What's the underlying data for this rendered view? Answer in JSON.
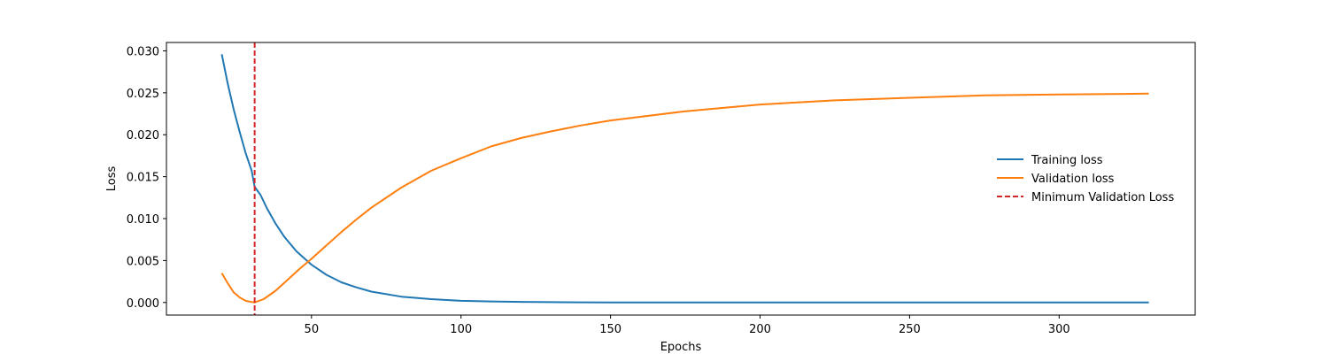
{
  "chart_data": {
    "type": "line",
    "xlabel": "Epochs",
    "ylabel": "Loss",
    "xlim": [
      1.5,
      345.5
    ],
    "ylim": [
      -0.0015,
      0.031
    ],
    "x_ticks": [
      50,
      100,
      150,
      200,
      250,
      300
    ],
    "x_tick_labels": [
      "50",
      "100",
      "150",
      "200",
      "250",
      "300"
    ],
    "y_ticks": [
      0.0,
      0.005,
      0.01,
      0.015,
      0.02,
      0.025,
      0.03
    ],
    "y_tick_labels": [
      "0.000",
      "0.005",
      "0.010",
      "0.015",
      "0.020",
      "0.025",
      "0.030"
    ],
    "grid": false,
    "legend_position": "center-right",
    "series": [
      {
        "name": "Training loss",
        "color": "#1f77b4",
        "style": "solid",
        "x": [
          20,
          22,
          24,
          26,
          28,
          30,
          31,
          33,
          35,
          38,
          41,
          45,
          50,
          55,
          60,
          65,
          70,
          80,
          90,
          100,
          110,
          120,
          130,
          140,
          150,
          175,
          200,
          250,
          300,
          330
        ],
        "y": [
          0.0296,
          0.0261,
          0.023,
          0.0203,
          0.0178,
          0.0157,
          0.0138,
          0.0128,
          0.0113,
          0.0094,
          0.0078,
          0.0061,
          0.0045,
          0.0033,
          0.0024,
          0.0018,
          0.0013,
          0.0007,
          0.0004,
          0.0002,
          0.00012,
          7e-05,
          4e-05,
          2e-05,
          1e-05,
          0.0,
          0.0,
          0.0,
          0.0,
          0.0
        ]
      },
      {
        "name": "Validation loss",
        "color": "#ff7f0e",
        "style": "solid",
        "x": [
          20,
          22,
          24,
          26,
          28,
          30,
          31,
          34,
          38,
          42,
          46,
          50,
          55,
          60,
          65,
          70,
          80,
          90,
          100,
          110,
          120,
          130,
          140,
          150,
          175,
          200,
          225,
          250,
          275,
          300,
          330
        ],
        "y": [
          0.0035,
          0.0023,
          0.0012,
          0.0006,
          0.0002,
          5e-05,
          0.0,
          0.0004,
          0.0014,
          0.0027,
          0.004,
          0.0052,
          0.0068,
          0.0084,
          0.0099,
          0.0113,
          0.0137,
          0.0157,
          0.0172,
          0.0186,
          0.0196,
          0.0204,
          0.0211,
          0.0217,
          0.0228,
          0.0236,
          0.0241,
          0.0244,
          0.0247,
          0.0248,
          0.0249
        ]
      },
      {
        "name": "Minimum Validation Loss",
        "color": "#d62728",
        "style": "dashed",
        "orientation": "vertical",
        "x_value": 31
      }
    ]
  }
}
